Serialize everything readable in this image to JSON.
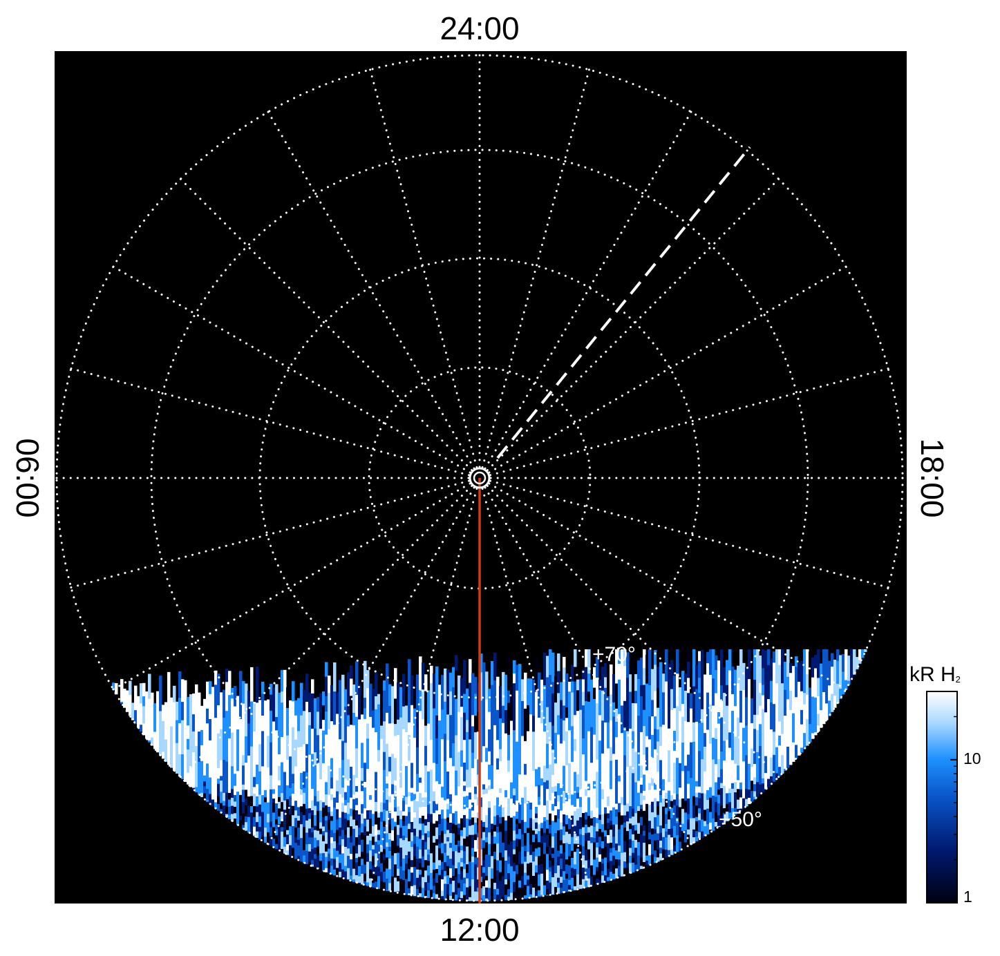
{
  "chart_data": {
    "type": "heatmap",
    "projection": "polar",
    "local_time_labels": {
      "top": "24:00",
      "bottom": "12:00",
      "left": "06:00",
      "right": "18:00"
    },
    "latitude_labels": [
      "+70°",
      "+50°"
    ],
    "colorbar": {
      "label": "kR H",
      "label_subscript": "2",
      "scale": "log",
      "ticks": [
        "10",
        "1"
      ],
      "range": [
        1,
        30
      ]
    },
    "colors": {
      "background": "#000000",
      "grid": "#ffffff",
      "sun_line": "#d03a10",
      "dashed_line": "#ffffff",
      "colormap": [
        "#000010",
        "#001a70",
        "#0a55c8",
        "#1e90ff",
        "#a8d8ff",
        "#ffffff"
      ]
    },
    "grid": true,
    "meridian_step_hours": 1,
    "latitude_circles_deg": [
      80,
      70,
      60,
      50
    ],
    "sun_direction_lt": "12:00",
    "dashed_line_lt": "20:30"
  }
}
